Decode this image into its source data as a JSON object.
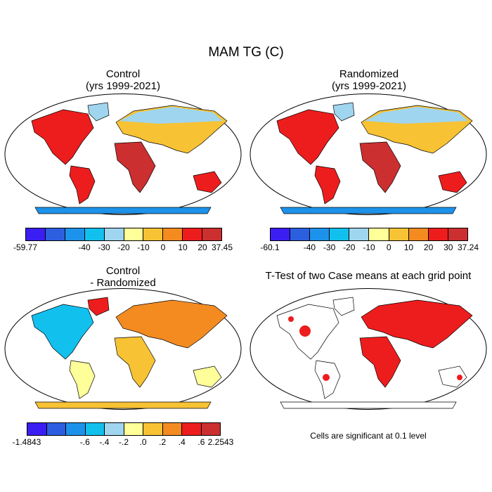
{
  "figure_title": "MAM TG (C)",
  "panels": [
    {
      "id": "control",
      "title_line1": "Control",
      "title_line2": "(yrs 1999-2021)",
      "colorbar": {
        "colors": [
          "#3b1ef2",
          "#2c5fe0",
          "#1d92ea",
          "#12c0ee",
          "#9fd5ee",
          "#ffff99",
          "#f7c234",
          "#f48b21",
          "#ee1d1d",
          "#cc2f2f"
        ],
        "tick_labels": [
          "-59.77",
          "-40",
          "-30",
          "-20",
          "-10",
          "0",
          "10",
          "20",
          "37.45"
        ]
      }
    },
    {
      "id": "randomized",
      "title_line1": "Randomized",
      "title_line2": "(yrs 1999-2021)",
      "colorbar": {
        "colors": [
          "#3b1ef2",
          "#2c5fe0",
          "#1d92ea",
          "#12c0ee",
          "#9fd5ee",
          "#ffff99",
          "#f7c234",
          "#f48b21",
          "#ee1d1d",
          "#cc2f2f"
        ],
        "tick_labels": [
          "-60.1",
          "-40",
          "-30",
          "-20",
          "-10",
          "0",
          "10",
          "20",
          "30",
          "37.24"
        ]
      }
    },
    {
      "id": "difference",
      "title_line1": "Control",
      "title_line2": "- Randomized",
      "colorbar": {
        "colors": [
          "#3b1ef2",
          "#2c5fe0",
          "#1d92ea",
          "#12c0ee",
          "#9fd5ee",
          "#ffff99",
          "#f7c234",
          "#f48b21",
          "#ee1d1d",
          "#cc2f2f"
        ],
        "tick_labels": [
          "-1.4843",
          "-.6",
          "-.4",
          "-.2",
          ".0",
          ".2",
          ".4",
          ".6",
          "2.2543"
        ]
      }
    },
    {
      "id": "ttest",
      "title_line1": "T-Test of two Case means at each grid point",
      "significance_color": "#ee1d1d",
      "note": "Cells are significant at 0.1 level"
    }
  ]
}
